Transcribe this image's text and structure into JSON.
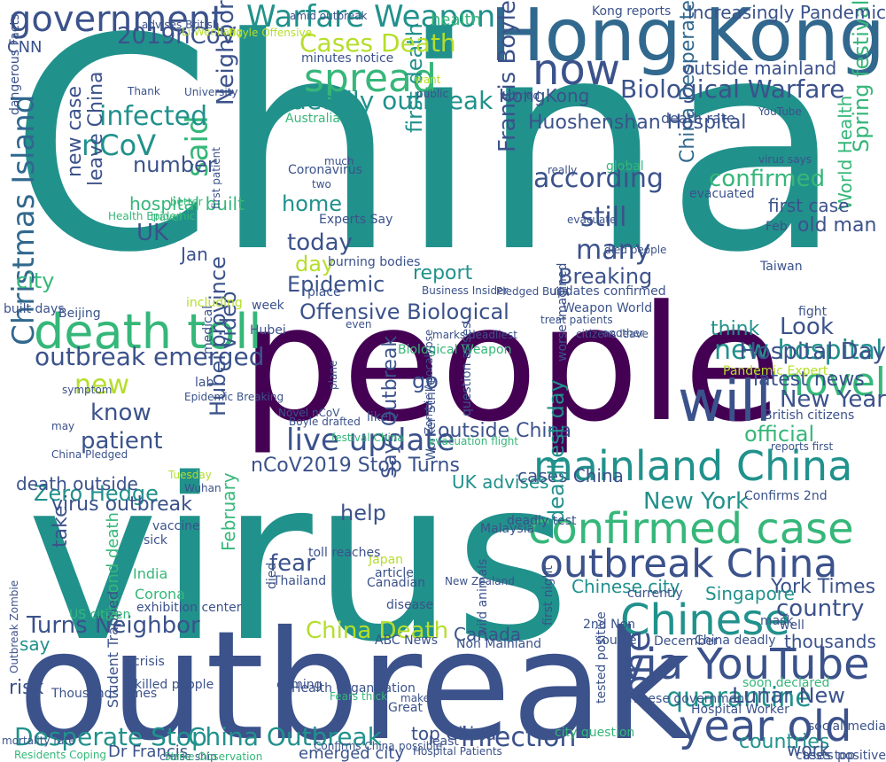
{
  "palette": {
    "dark_purple": "#440154",
    "indigo": "#3b528b",
    "blue": "#31688e",
    "teal": "#21918c",
    "green": "#35b779",
    "light_green": "#6ece58",
    "yellow": "#b5de2b"
  },
  "words": [
    {
      "text": "China",
      "color": "#21918c"
    },
    {
      "text": "virus",
      "color": "#21918c"
    },
    {
      "text": "outbreak",
      "color": "#3b528b"
    },
    {
      "text": "people",
      "color": "#440154"
    },
    {
      "text": "Hong Kong",
      "color": "#31688e"
    },
    {
      "text": "death toll",
      "color": "#35b779"
    },
    {
      "text": "mainland China",
      "color": "#21918c"
    },
    {
      "text": "confirmed case",
      "color": "#35b779"
    },
    {
      "text": "via YouTube",
      "color": "#3b528b"
    },
    {
      "text": "year old",
      "color": "#3b528b"
    },
    {
      "text": "outbreak China",
      "color": "#3b528b"
    },
    {
      "text": "Chinese",
      "color": "#21918c"
    },
    {
      "text": "will",
      "color": "#3b528b"
    },
    {
      "text": "novel",
      "color": "#35b779"
    },
    {
      "text": "government",
      "color": "#3b528b"
    },
    {
      "text": "Warfare Weapon",
      "color": "#21918c"
    },
    {
      "text": "now",
      "color": "#3b528b"
    },
    {
      "text": "spread",
      "color": "#35b779"
    },
    {
      "text": "Biological Warfare",
      "color": "#3b528b"
    },
    {
      "text": "live update",
      "color": "#3b528b"
    },
    {
      "text": "Offensive Biological",
      "color": "#3b528b"
    },
    {
      "text": "Christmas Island",
      "color": "#31688e"
    },
    {
      "text": "Francis Boyle",
      "color": "#3b528b"
    },
    {
      "text": "first death",
      "color": "#21918c"
    },
    {
      "text": "China Desperate",
      "color": "#31688e"
    },
    {
      "text": "Neighbor",
      "color": "#3b528b"
    },
    {
      "text": "Hubei province",
      "color": "#3b528b"
    },
    {
      "text": "infection",
      "color": "#3b528b"
    },
    {
      "text": "China Outbreak",
      "color": "#21918c"
    },
    {
      "text": "Desperate Stop",
      "color": "#21918c"
    },
    {
      "text": "Turns Neighbor",
      "color": "#3b528b"
    },
    {
      "text": "nCoV2019 Stop Turns",
      "color": "#3b528b"
    },
    {
      "text": "Zero Hedge",
      "color": "#21918c"
    },
    {
      "text": "know",
      "color": "#3b528b"
    },
    {
      "text": "patient",
      "color": "#3b528b"
    },
    {
      "text": "new hospital",
      "color": "#21918c"
    },
    {
      "text": "according",
      "color": "#3b528b"
    },
    {
      "text": "said",
      "color": "#35b779"
    },
    {
      "text": "infected",
      "color": "#21918c"
    },
    {
      "text": "nCoV",
      "color": "#21918c"
    },
    {
      "text": "Cases Death",
      "color": "#b5de2b"
    },
    {
      "text": "2019nCoV",
      "color": "#3b528b"
    },
    {
      "text": "deadly outbreak",
      "color": "#21918c"
    },
    {
      "text": "outside mainland",
      "color": "#3b528b"
    },
    {
      "text": "Huoshenshan Hospital",
      "color": "#3b528b"
    },
    {
      "text": "HongKong",
      "color": "#3b528b"
    },
    {
      "text": "today",
      "color": "#3b528b"
    },
    {
      "text": "many",
      "color": "#3b528b"
    },
    {
      "text": "still",
      "color": "#3b528b"
    },
    {
      "text": "UK",
      "color": "#3b528b"
    },
    {
      "text": "new",
      "color": "#b5de2b"
    },
    {
      "text": "quarantine",
      "color": "#21918c"
    },
    {
      "text": "country",
      "color": "#3b528b"
    },
    {
      "text": "one",
      "color": "#3b528b"
    },
    {
      "text": "China Death",
      "color": "#b5de2b"
    },
    {
      "text": "Canada",
      "color": "#3b528b"
    },
    {
      "text": "fear",
      "color": "#3b528b"
    },
    {
      "text": "help",
      "color": "#3b528b"
    },
    {
      "text": "New York",
      "color": "#21918c"
    },
    {
      "text": "York Times",
      "color": "#3b528b"
    },
    {
      "text": "Singapore",
      "color": "#21918c"
    },
    {
      "text": "Lunar New",
      "color": "#3b528b"
    },
    {
      "text": "countries",
      "color": "#21918c"
    },
    {
      "text": "work",
      "color": "#3b528b"
    },
    {
      "text": "city",
      "color": "#35b779"
    },
    {
      "text": "video",
      "color": "#3b528b"
    },
    {
      "text": "Epidemic",
      "color": "#3b528b"
    },
    {
      "text": "Breaking",
      "color": "#3b528b"
    },
    {
      "text": "home",
      "color": "#21918c"
    },
    {
      "text": "day",
      "color": "#b5de2b"
    },
    {
      "text": "report",
      "color": "#21918c"
    },
    {
      "text": "Jan",
      "color": "#3b528b"
    },
    {
      "text": "Look",
      "color": "#3b528b"
    },
    {
      "text": "latest news",
      "color": "#3b528b"
    },
    {
      "text": "Hospital Day",
      "color": "#3b528b"
    },
    {
      "text": "New Year",
      "color": "#3b528b"
    },
    {
      "text": "Spring festival",
      "color": "#35b779"
    },
    {
      "text": "World Health",
      "color": "#35b779"
    },
    {
      "text": "old man",
      "color": "#3b528b"
    },
    {
      "text": "confirmed",
      "color": "#35b779"
    },
    {
      "text": "first case",
      "color": "#3b528b"
    },
    {
      "text": "official",
      "color": "#35b779"
    },
    {
      "text": "think",
      "color": "#21918c"
    },
    {
      "text": "go",
      "color": "#3b528b"
    },
    {
      "text": "outside China",
      "color": "#3b528b"
    },
    {
      "text": "UK advises",
      "color": "#21918c"
    },
    {
      "text": "cases China",
      "color": "#3b528b"
    },
    {
      "text": "Says Outbreak",
      "color": "#3b528b"
    },
    {
      "text": "deadliest day",
      "color": "#21918c"
    },
    {
      "text": "Chinese city",
      "color": "#21918c"
    },
    {
      "text": "virus outbreak",
      "color": "#3b528b"
    },
    {
      "text": "take",
      "color": "#3b528b"
    },
    {
      "text": "risk",
      "color": "#3b528b"
    },
    {
      "text": "say",
      "color": "#21918c"
    },
    {
      "text": "death outside",
      "color": "#3b528b"
    },
    {
      "text": "outbreak emerged",
      "color": "#3b528b"
    },
    {
      "text": "leave China",
      "color": "#3b528b"
    },
    {
      "text": "number",
      "color": "#3b528b"
    },
    {
      "text": "new case",
      "color": "#3b528b"
    },
    {
      "text": "hospital built",
      "color": "#35b779"
    },
    {
      "text": "top China",
      "color": "#3b528b"
    },
    {
      "text": "Dr Francis",
      "color": "#3b528b"
    },
    {
      "text": "emerged city",
      "color": "#3b528b"
    },
    {
      "text": "Second death",
      "color": "#35b779"
    },
    {
      "text": "thousands",
      "color": "#3b528b"
    },
    {
      "text": "February",
      "color": "#35b779"
    },
    {
      "text": "health",
      "color": "#35b779"
    },
    {
      "text": "CNN",
      "color": "#3b528b"
    },
    {
      "text": "Boyle Offensive",
      "color": "#b5de2b"
    },
    {
      "text": "Li Wenliang",
      "color": "#b5de2b"
    },
    {
      "text": "Kong reports",
      "color": "#3b528b"
    },
    {
      "text": "Increasingly Pandemic",
      "color": "#3b528b"
    },
    {
      "text": "amid outbreak",
      "color": "#3b528b"
    },
    {
      "text": "minutes notice",
      "color": "#3b528b"
    },
    {
      "text": "dangerous Facts",
      "color": "#3b528b"
    },
    {
      "text": "Biological Weapon",
      "color": "#35b779"
    },
    {
      "text": "Beijing",
      "color": "#3b528b"
    },
    {
      "text": "built days",
      "color": "#3b528b"
    },
    {
      "text": "including",
      "color": "#b5de2b"
    },
    {
      "text": "week",
      "color": "#3b528b"
    },
    {
      "text": "medical",
      "color": "#3b528b"
    },
    {
      "text": "lab",
      "color": "#3b528b"
    },
    {
      "text": "Feb",
      "color": "#3b528b"
    },
    {
      "text": "Taiwan",
      "color": "#3b528b"
    },
    {
      "text": "death rate",
      "color": "#3b528b"
    },
    {
      "text": "Australia",
      "color": "#35b779"
    },
    {
      "text": "Thailand",
      "color": "#3b528b"
    },
    {
      "text": "died",
      "color": "#3b528b"
    },
    {
      "text": "Japan",
      "color": "#b5de2b"
    },
    {
      "text": "India",
      "color": "#35b779"
    },
    {
      "text": "Corona",
      "color": "#35b779"
    },
    {
      "text": "global",
      "color": "#35b779"
    },
    {
      "text": "fight",
      "color": "#3b528b"
    },
    {
      "text": "evacuated",
      "color": "#3b528b"
    },
    {
      "text": "Coronavirus",
      "color": "#3b528b"
    },
    {
      "text": "Experts Say",
      "color": "#3b528b"
    },
    {
      "text": "burning bodies",
      "color": "#3b528b"
    },
    {
      "text": "place",
      "color": "#3b528b"
    },
    {
      "text": "updates confirmed",
      "color": "#3b528b"
    },
    {
      "text": "tested positive",
      "color": "#3b528b"
    },
    {
      "text": "Chinese government",
      "color": "#3b528b"
    },
    {
      "text": "Hospital Worker",
      "color": "#3b528b"
    },
    {
      "text": "Health Organization",
      "color": "#3b528b"
    },
    {
      "text": "exhibition center",
      "color": "#3b528b"
    },
    {
      "text": "cruise ship",
      "color": "#3b528b"
    },
    {
      "text": "Strike Observation",
      "color": "#35b779"
    },
    {
      "text": "killed people",
      "color": "#3b528b"
    },
    {
      "text": "crisis",
      "color": "#3b528b"
    },
    {
      "text": "coming",
      "color": "#3b528b"
    },
    {
      "text": "least",
      "color": "#3b528b"
    },
    {
      "text": "cases top",
      "color": "#3b528b"
    },
    {
      "text": "social media",
      "color": "#3b528b"
    },
    {
      "text": "tests positive",
      "color": "#3b528b"
    },
    {
      "text": "well",
      "color": "#3b528b"
    },
    {
      "text": "China deadly",
      "color": "#3b528b"
    },
    {
      "text": "British citizens",
      "color": "#3b528b"
    },
    {
      "text": "Pandemic Expert",
      "color": "#b5de2b"
    },
    {
      "text": "reports first",
      "color": "#3b528b"
    },
    {
      "text": "Worker Strike",
      "color": "#3b528b"
    },
    {
      "text": "question arises",
      "color": "#3b528b"
    },
    {
      "text": "Business Insider",
      "color": "#3b528b"
    },
    {
      "text": "Pledged Build",
      "color": "#3b528b"
    },
    {
      "text": "Weapon World",
      "color": "#3b528b"
    },
    {
      "text": "treat patients",
      "color": "#3b528b"
    },
    {
      "text": "wild animals",
      "color": "#3b528b"
    },
    {
      "text": "ABC News",
      "color": "#3b528b"
    },
    {
      "text": "Non Mainland",
      "color": "#3b528b"
    },
    {
      "text": "Student Trapped",
      "color": "#3b528b"
    },
    {
      "text": "Thousands times",
      "color": "#3b528b"
    },
    {
      "text": "US citizen",
      "color": "#35b779"
    },
    {
      "text": "vaccine",
      "color": "#3b528b"
    },
    {
      "text": "sick",
      "color": "#3b528b"
    },
    {
      "text": "currently",
      "color": "#3b528b"
    },
    {
      "text": "mask",
      "color": "#3b528b"
    },
    {
      "text": "December",
      "color": "#3b528b"
    },
    {
      "text": "source",
      "color": "#3b528b"
    },
    {
      "text": "city question",
      "color": "#35b779"
    },
    {
      "text": "soon declared",
      "color": "#35b779"
    },
    {
      "text": "first patient",
      "color": "#3b528b"
    },
    {
      "text": "Epidemic Breaking",
      "color": "#3b528b"
    },
    {
      "text": "first night",
      "color": "#3b528b"
    },
    {
      "text": "Zombie Apocalypse",
      "color": "#3b528b"
    },
    {
      "text": "citizens leave",
      "color": "#3b528b"
    },
    {
      "text": "worse imagined",
      "color": "#3b528b"
    },
    {
      "text": "Hospital Patients",
      "color": "#3b528b"
    },
    {
      "text": "deadly test",
      "color": "#3b528b"
    },
    {
      "text": "Canadian",
      "color": "#3b528b"
    },
    {
      "text": "disease",
      "color": "#3b528b"
    },
    {
      "text": "article",
      "color": "#3b528b"
    },
    {
      "text": "Malaysia",
      "color": "#3b528b"
    },
    {
      "text": "2nd Non",
      "color": "#3b528b"
    },
    {
      "text": "Confirms 2nd",
      "color": "#3b528b"
    },
    {
      "text": "advises British",
      "color": "#3b528b"
    },
    {
      "text": "Wuhan",
      "color": "#3b528b"
    },
    {
      "text": "Tuesday",
      "color": "#b5de2b"
    },
    {
      "text": "toll reaches",
      "color": "#3b528b"
    },
    {
      "text": "Hubei",
      "color": "#3b528b"
    },
    {
      "text": "Novel nCoV",
      "color": "#3b528b"
    },
    {
      "text": "marks deadliest",
      "color": "#3b528b"
    },
    {
      "text": "festival China",
      "color": "#35b779"
    },
    {
      "text": "another",
      "color": "#3b528b"
    },
    {
      "text": "Boyle drafted",
      "color": "#3b528b"
    },
    {
      "text": "New Zealand",
      "color": "#3b528b"
    },
    {
      "text": "plane",
      "color": "#3b528b"
    },
    {
      "text": "evacuation flight",
      "color": "#35b779"
    },
    {
      "text": "Outbreak Zombie",
      "color": "#3b528b"
    },
    {
      "text": "Residents Coping",
      "color": "#35b779"
    },
    {
      "text": "mortality rate",
      "color": "#3b528b"
    },
    {
      "text": "possible",
      "color": "#3b528b"
    },
    {
      "text": "Confirms China",
      "color": "#3b528b"
    },
    {
      "text": "Fears thick",
      "color": "#35b779"
    },
    {
      "text": "Great",
      "color": "#3b528b"
    },
    {
      "text": "make",
      "color": "#3b528b"
    },
    {
      "text": "even",
      "color": "#3b528b"
    },
    {
      "text": "evacuate",
      "color": "#3b528b"
    },
    {
      "text": "died people",
      "color": "#3b528b"
    },
    {
      "text": "two",
      "color": "#3b528b"
    },
    {
      "text": "much",
      "color": "#3b528b"
    },
    {
      "text": "really",
      "color": "#3b528b"
    },
    {
      "text": "travel",
      "color": "#35b779"
    },
    {
      "text": "better",
      "color": "#35b779"
    },
    {
      "text": "Thank",
      "color": "#3b528b"
    },
    {
      "text": "University",
      "color": "#3b528b"
    },
    {
      "text": "public",
      "color": "#3b528b"
    },
    {
      "text": "want",
      "color": "#b5de2b"
    },
    {
      "text": "worried",
      "color": "#3b528b"
    },
    {
      "text": "YouTube",
      "color": "#3b528b"
    },
    {
      "text": "virus says",
      "color": "#3b528b"
    },
    {
      "text": "Health Epidemic",
      "color": "#35b779"
    },
    {
      "text": "may",
      "color": "#3b528b"
    },
    {
      "text": "China Pledged",
      "color": "#3b528b"
    },
    {
      "text": "symptom",
      "color": "#3b528b"
    },
    {
      "text": "likely",
      "color": "#3b528b"
    },
    {
      "text": "concern",
      "color": "#3b528b"
    },
    {
      "text": "go",
      "color": "#3b528b"
    }
  ]
}
